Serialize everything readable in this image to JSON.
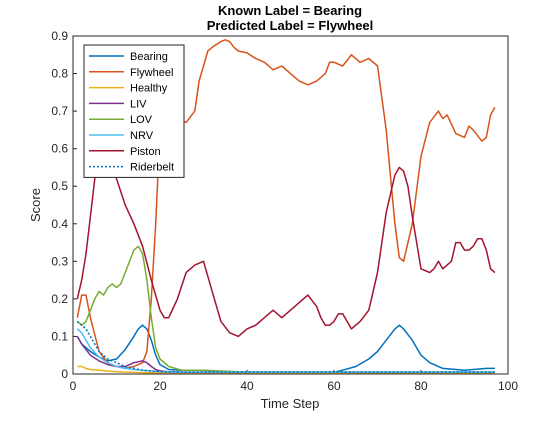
{
  "chart_data": {
    "type": "line",
    "title": "Known Label = Bearing",
    "subtitle": "Predicted Label = Flywheel",
    "xlabel": "Time Step",
    "ylabel": "Score",
    "xlim": [
      0,
      100
    ],
    "ylim": [
      0,
      0.9
    ],
    "xticks": [
      0,
      20,
      40,
      60,
      80,
      100
    ],
    "yticks": [
      0,
      0.1,
      0.2,
      0.3,
      0.4,
      0.5,
      0.6,
      0.7,
      0.8,
      0.9
    ],
    "grid": false,
    "legend_position": "top-left",
    "series": [
      {
        "name": "Bearing",
        "color": "#0072BD",
        "x": [
          1,
          2,
          3,
          4,
          6,
          8,
          10,
          12,
          14,
          15,
          16,
          17,
          18,
          19,
          20,
          22,
          25,
          30,
          35,
          40,
          50,
          60,
          62,
          65,
          68,
          70,
          72,
          74,
          75,
          76,
          78,
          80,
          82,
          85,
          90,
          95,
          97
        ],
        "y": [
          0.1,
          0.08,
          0.07,
          0.06,
          0.045,
          0.035,
          0.04,
          0.065,
          0.1,
          0.12,
          0.13,
          0.12,
          0.09,
          0.05,
          0.025,
          0.012,
          0.01,
          0.01,
          0.005,
          0.005,
          0.005,
          0.005,
          0.01,
          0.02,
          0.04,
          0.06,
          0.09,
          0.12,
          0.13,
          0.12,
          0.09,
          0.05,
          0.03,
          0.015,
          0.01,
          0.015,
          0.015
        ]
      },
      {
        "name": "Flywheel",
        "color": "#D95319",
        "x": [
          1,
          2,
          3,
          4,
          6,
          8,
          10,
          12,
          14,
          16,
          17,
          18,
          19,
          20,
          21,
          22,
          24,
          26,
          28,
          29,
          30,
          31,
          32,
          34,
          35,
          36,
          37,
          38,
          40,
          42,
          44,
          45,
          46,
          48,
          50,
          52,
          54,
          56,
          58,
          59,
          60,
          62,
          64,
          66,
          68,
          70,
          72,
          74,
          75,
          76,
          78,
          80,
          82,
          84,
          85,
          86,
          88,
          90,
          91,
          92,
          94,
          95,
          96,
          97
        ],
        "y": [
          0.15,
          0.21,
          0.21,
          0.15,
          0.06,
          0.03,
          0.02,
          0.015,
          0.02,
          0.03,
          0.06,
          0.2,
          0.4,
          0.65,
          0.75,
          0.69,
          0.68,
          0.67,
          0.7,
          0.78,
          0.82,
          0.86,
          0.87,
          0.885,
          0.89,
          0.885,
          0.87,
          0.86,
          0.855,
          0.84,
          0.83,
          0.82,
          0.81,
          0.82,
          0.8,
          0.78,
          0.77,
          0.78,
          0.8,
          0.83,
          0.83,
          0.82,
          0.85,
          0.83,
          0.84,
          0.82,
          0.65,
          0.4,
          0.31,
          0.3,
          0.4,
          0.58,
          0.67,
          0.7,
          0.68,
          0.69,
          0.64,
          0.63,
          0.66,
          0.65,
          0.62,
          0.63,
          0.69,
          0.71
        ]
      },
      {
        "name": "Healthy",
        "color": "#EDB120",
        "x": [
          1,
          2,
          3,
          4,
          6,
          8,
          10,
          12,
          15,
          20,
          30,
          40,
          50,
          60,
          70,
          80,
          90,
          97
        ],
        "y": [
          0.02,
          0.02,
          0.015,
          0.012,
          0.01,
          0.008,
          0.006,
          0.005,
          0.004,
          0.003,
          0.002,
          0.002,
          0.002,
          0.002,
          0.002,
          0.002,
          0.002,
          0.002
        ]
      },
      {
        "name": "LIV",
        "color": "#7E2F8E",
        "x": [
          1,
          2,
          3,
          4,
          6,
          8,
          10,
          12,
          14,
          16,
          17,
          18,
          19,
          20,
          22,
          25,
          30,
          40,
          50,
          60,
          70,
          80,
          90,
          97
        ],
        "y": [
          0.1,
          0.08,
          0.065,
          0.05,
          0.035,
          0.025,
          0.02,
          0.02,
          0.03,
          0.035,
          0.03,
          0.02,
          0.012,
          0.008,
          0.006,
          0.005,
          0.005,
          0.005,
          0.005,
          0.005,
          0.005,
          0.005,
          0.005,
          0.005
        ]
      },
      {
        "name": "LOV",
        "color": "#77AC30",
        "x": [
          1,
          2,
          3,
          4,
          5,
          6,
          7,
          8,
          9,
          10,
          11,
          12,
          13,
          14,
          15,
          16,
          17,
          18,
          19,
          20,
          22,
          25,
          30,
          40,
          50,
          60,
          70,
          80,
          90,
          97
        ],
        "y": [
          0.14,
          0.13,
          0.14,
          0.17,
          0.2,
          0.22,
          0.21,
          0.23,
          0.24,
          0.23,
          0.24,
          0.27,
          0.3,
          0.33,
          0.34,
          0.32,
          0.25,
          0.15,
          0.07,
          0.04,
          0.02,
          0.01,
          0.01,
          0.005,
          0.005,
          0.005,
          0.005,
          0.005,
          0.005,
          0.005
        ]
      },
      {
        "name": "NRV",
        "color": "#4DBEEE",
        "x": [
          1,
          2,
          3,
          4,
          6,
          8,
          10,
          12,
          14,
          16,
          18,
          20,
          25,
          30,
          40,
          50,
          60,
          70,
          80,
          90,
          97
        ],
        "y": [
          0.12,
          0.11,
          0.09,
          0.07,
          0.045,
          0.03,
          0.02,
          0.015,
          0.012,
          0.01,
          0.008,
          0.006,
          0.005,
          0.005,
          0.005,
          0.005,
          0.005,
          0.005,
          0.005,
          0.005,
          0.005
        ]
      },
      {
        "name": "Piston",
        "color": "#A2142F",
        "x": [
          1,
          2,
          3,
          4,
          5,
          6,
          7,
          8,
          10,
          12,
          14,
          16,
          18,
          20,
          21,
          22,
          24,
          26,
          28,
          30,
          32,
          34,
          36,
          38,
          40,
          42,
          44,
          46,
          48,
          50,
          52,
          54,
          56,
          57,
          58,
          59,
          60,
          61,
          62,
          63,
          64,
          66,
          68,
          70,
          72,
          74,
          75,
          76,
          77,
          78,
          80,
          82,
          83,
          84,
          85,
          86,
          87,
          88,
          89,
          90,
          91,
          92,
          93,
          94,
          95,
          96,
          97
        ],
        "y": [
          0.2,
          0.25,
          0.32,
          0.42,
          0.52,
          0.58,
          0.6,
          0.58,
          0.52,
          0.45,
          0.4,
          0.34,
          0.25,
          0.17,
          0.15,
          0.15,
          0.2,
          0.27,
          0.29,
          0.3,
          0.22,
          0.14,
          0.11,
          0.1,
          0.12,
          0.13,
          0.15,
          0.17,
          0.15,
          0.17,
          0.19,
          0.21,
          0.18,
          0.15,
          0.13,
          0.13,
          0.14,
          0.16,
          0.16,
          0.14,
          0.12,
          0.14,
          0.17,
          0.27,
          0.43,
          0.53,
          0.55,
          0.54,
          0.5,
          0.42,
          0.28,
          0.27,
          0.28,
          0.3,
          0.28,
          0.29,
          0.3,
          0.35,
          0.35,
          0.33,
          0.33,
          0.34,
          0.36,
          0.36,
          0.33,
          0.28,
          0.27
        ]
      },
      {
        "name": "Riderbelt",
        "color": "#0072BD",
        "dashed": true,
        "x": [
          1,
          2,
          3,
          4,
          5,
          6,
          8,
          10,
          12,
          14,
          16,
          18,
          20,
          25,
          30,
          40,
          50,
          60,
          70,
          80,
          90,
          97
        ],
        "y": [
          0.14,
          0.13,
          0.12,
          0.1,
          0.08,
          0.06,
          0.04,
          0.03,
          0.02,
          0.015,
          0.01,
          0.008,
          0.006,
          0.005,
          0.005,
          0.005,
          0.005,
          0.005,
          0.005,
          0.005,
          0.005,
          0.005
        ]
      }
    ]
  }
}
